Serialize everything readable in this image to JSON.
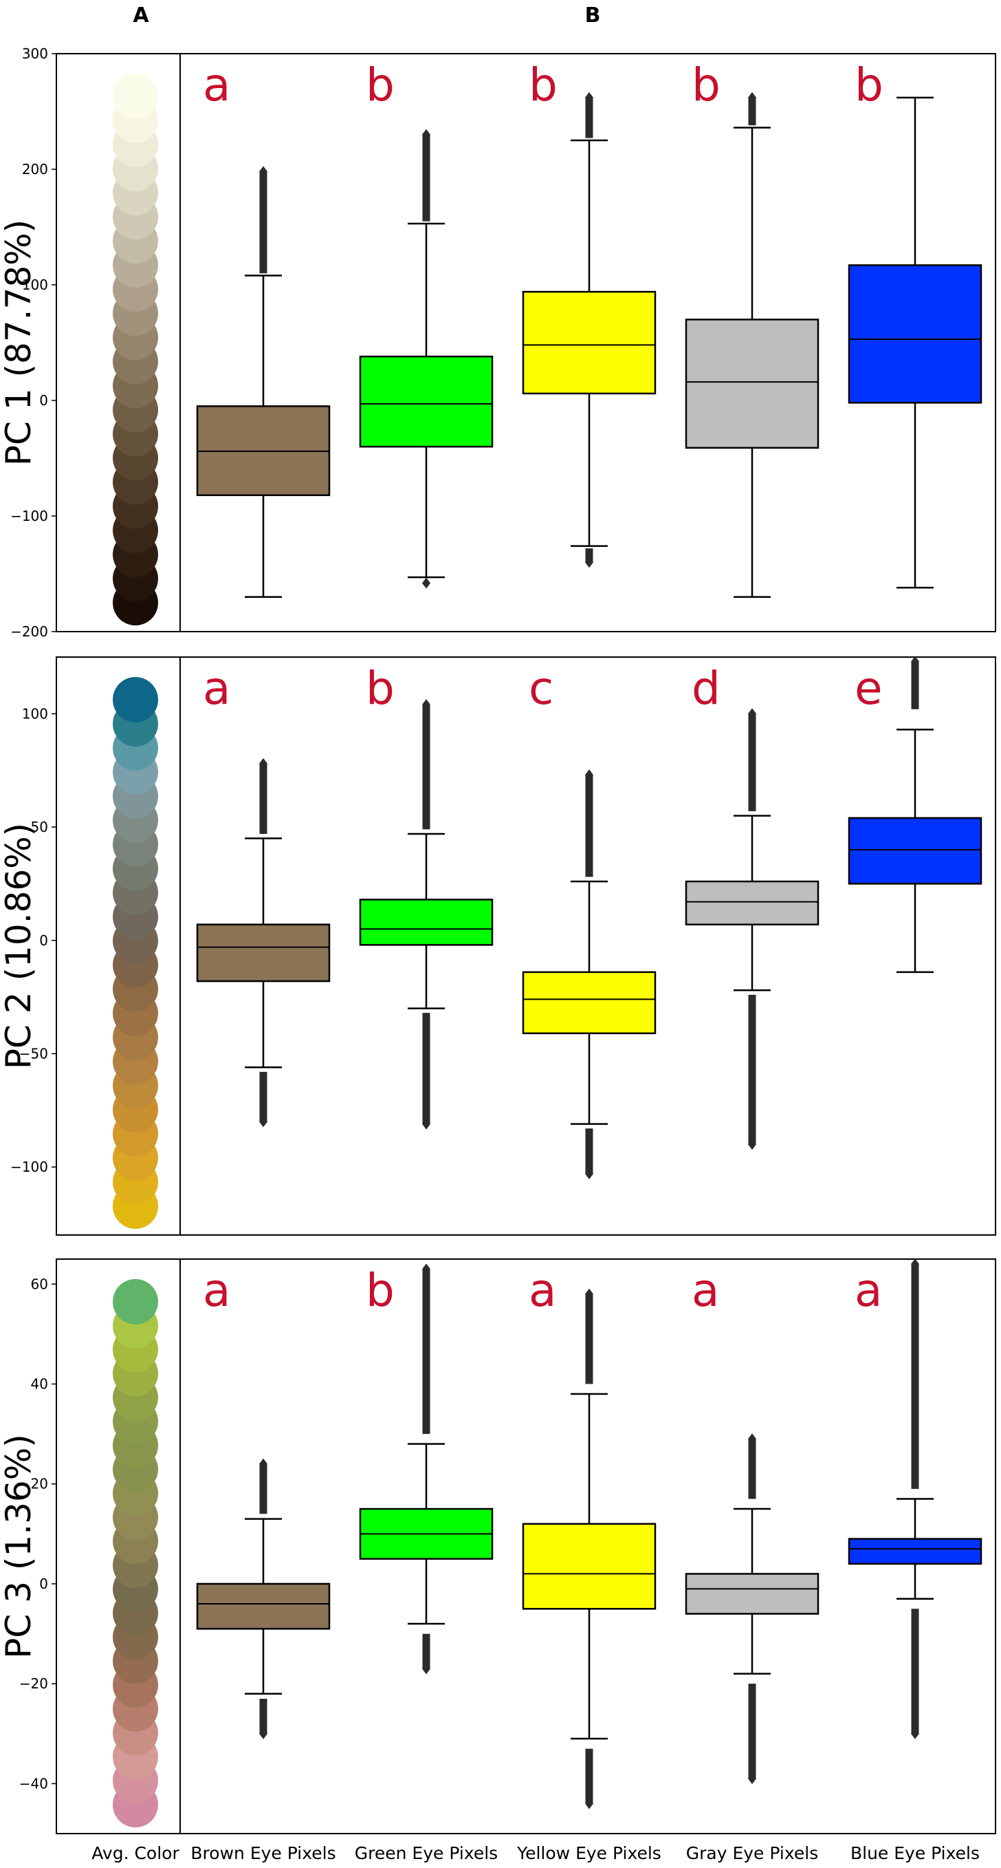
{
  "panel_labels": {
    "left": "A",
    "right": "B"
  },
  "avg_color_label": "Avg. Color",
  "chart_data": [
    {
      "type": "box",
      "ylabel": "PC 1 (87.78%)",
      "ylim": [
        -200,
        300
      ],
      "yticks": [
        -200,
        -100,
        0,
        100,
        200,
        300
      ],
      "yticklabels": [
        "−200",
        "−100",
        "0",
        "100",
        "200",
        "300"
      ],
      "categories": [
        "Brown Eye Pixels",
        "Green Eye Pixels",
        "Yellow Eye Pixels",
        "Gray Eye Pixels",
        "Blue Eye Pixels"
      ],
      "significance_letters": [
        "a",
        "b",
        "b",
        "b",
        "b"
      ],
      "series": [
        {
          "color": "#8B7355",
          "q1": -82,
          "median": -44,
          "q3": -5,
          "whisker_low": -170,
          "whisker_high": 108,
          "outliers_low": [],
          "outliers_high": [
            110,
            198
          ]
        },
        {
          "color": "#00FF00",
          "q1": -40,
          "median": -3,
          "q3": 38,
          "whisker_low": -153,
          "whisker_high": 153,
          "outliers_low": [
            -158
          ],
          "outliers_high": [
            155,
            230
          ]
        },
        {
          "color": "#FFFF00",
          "q1": 6,
          "median": 48,
          "q3": 94,
          "whisker_low": -126,
          "whisker_high": 225,
          "outliers_low": [
            -128,
            -140
          ],
          "outliers_high": [
            227,
            262
          ]
        },
        {
          "color": "#BEBEBE",
          "q1": -41,
          "median": 16,
          "q3": 70,
          "whisker_low": -170,
          "whisker_high": 236,
          "outliers_low": [],
          "outliers_high": [
            238,
            262
          ]
        },
        {
          "color": "#0033FF",
          "q1": -2,
          "median": 53,
          "q3": 117,
          "whisker_low": -162,
          "whisker_high": 262,
          "outliers_low": [],
          "outliers_high": []
        }
      ],
      "avg_colors": [
        "#1a0d07",
        "#24150c",
        "#2e1d11",
        "#382618",
        "#43301f",
        "#4e3b28",
        "#594631",
        "#65523b",
        "#715e46",
        "#7d6b52",
        "#897860",
        "#95856d",
        "#a1927b",
        "#ad9f89",
        "#b8ad98",
        "#c4bba7",
        "#cfc8b4",
        "#dad5c1",
        "#e4e1cd",
        "#eeecd8",
        "#f6f5e2",
        "#fbfbea"
      ]
    },
    {
      "type": "box",
      "ylabel": "PC 2 (10.86%)",
      "ylim": [
        -130,
        125
      ],
      "yticks": [
        -100,
        -50,
        0,
        50,
        100
      ],
      "yticklabels": [
        "−100",
        "−50",
        "0",
        "50",
        "100"
      ],
      "categories": [
        "Brown Eye Pixels",
        "Green Eye Pixels",
        "Yellow Eye Pixels",
        "Gray Eye Pixels",
        "Blue Eye Pixels"
      ],
      "significance_letters": [
        "a",
        "b",
        "c",
        "d",
        "e"
      ],
      "series": [
        {
          "color": "#8B7355",
          "q1": -18,
          "median": -3,
          "q3": 7,
          "whisker_low": -56,
          "whisker_high": 45,
          "outliers_low": [
            -58,
            -80
          ],
          "outliers_high": [
            47,
            78
          ]
        },
        {
          "color": "#00FF00",
          "q1": -2,
          "median": 5,
          "q3": 18,
          "whisker_low": -30,
          "whisker_high": 47,
          "outliers_low": [
            -32,
            -81
          ],
          "outliers_high": [
            49,
            104
          ]
        },
        {
          "color": "#FFFF00",
          "q1": -41,
          "median": -26,
          "q3": -14,
          "whisker_low": -81,
          "whisker_high": 26,
          "outliers_low": [
            -83,
            -103
          ],
          "outliers_high": [
            28,
            73
          ]
        },
        {
          "color": "#BEBEBE",
          "q1": 7,
          "median": 17,
          "q3": 26,
          "whisker_low": -22,
          "whisker_high": 55,
          "outliers_low": [
            -24,
            -90
          ],
          "outliers_high": [
            57,
            100
          ]
        },
        {
          "color": "#0033FF",
          "q1": 25,
          "median": 40,
          "q3": 54,
          "whisker_low": -14,
          "whisker_high": 93,
          "outliers_low": [],
          "outliers_high": [
            102,
            123
          ]
        }
      ],
      "avg_colors": [
        "#e0b80f",
        "#dfb01a",
        "#daa424",
        "#d29a2c",
        "#c99032",
        "#bd8a3a",
        "#b38240",
        "#a87a44",
        "#9c7244",
        "#8e6a45",
        "#80644a",
        "#756452",
        "#70685c",
        "#727164",
        "#757a6e",
        "#7a8379",
        "#7f8c85",
        "#80959a",
        "#7ba0ab",
        "#5a99a6",
        "#2a7e8c",
        "#0e6688"
      ]
    },
    {
      "type": "box",
      "ylabel": "PC 3 (1.36%)",
      "ylim": [
        -50,
        65
      ],
      "yticks": [
        -40,
        -20,
        0,
        20,
        40,
        60
      ],
      "yticklabels": [
        "−40",
        "−20",
        "0",
        "20",
        "40",
        "60"
      ],
      "categories": [
        "Brown Eye Pixels",
        "Green Eye Pixels",
        "Yellow Eye Pixels",
        "Gray Eye Pixels",
        "Blue Eye Pixels"
      ],
      "significance_letters": [
        "a",
        "b",
        "a",
        "a",
        "a"
      ],
      "series": [
        {
          "color": "#8B7355",
          "q1": -9,
          "median": -4,
          "q3": 0,
          "whisker_low": -22,
          "whisker_high": 13,
          "outliers_low": [
            -23,
            -30
          ],
          "outliers_high": [
            14,
            24
          ]
        },
        {
          "color": "#00FF00",
          "q1": 5,
          "median": 10,
          "q3": 15,
          "whisker_low": -8,
          "whisker_high": 28,
          "outliers_low": [
            -10,
            -17
          ],
          "outliers_high": [
            30,
            63
          ]
        },
        {
          "color": "#FFFF00",
          "q1": -5,
          "median": 2,
          "q3": 12,
          "whisker_low": -31,
          "whisker_high": 38,
          "outliers_low": [
            -33,
            -44
          ],
          "outliers_high": [
            40,
            58
          ]
        },
        {
          "color": "#BEBEBE",
          "q1": -6,
          "median": -1,
          "q3": 2,
          "whisker_low": -18,
          "whisker_high": 15,
          "outliers_low": [
            -20,
            -39
          ],
          "outliers_high": [
            17,
            29
          ]
        },
        {
          "color": "#0033FF",
          "q1": 4,
          "median": 7,
          "q3": 9,
          "whisker_low": -3,
          "whisker_high": 17,
          "outliers_low": [
            -5,
            -30
          ],
          "outliers_high": [
            19,
            64
          ]
        }
      ],
      "avg_colors": [
        "#d389a0",
        "#d5919e",
        "#d49a96",
        "#c98f85",
        "#b77e6e",
        "#a6735d",
        "#946c52",
        "#85694c",
        "#7a6a4c",
        "#756c4d",
        "#807652",
        "#8b8152",
        "#928a56",
        "#8f9051",
        "#88924f",
        "#88964c",
        "#8a9b4b",
        "#90a447",
        "#9cb041",
        "#a6ba3c",
        "#abc645",
        "#60b469"
      ]
    }
  ]
}
